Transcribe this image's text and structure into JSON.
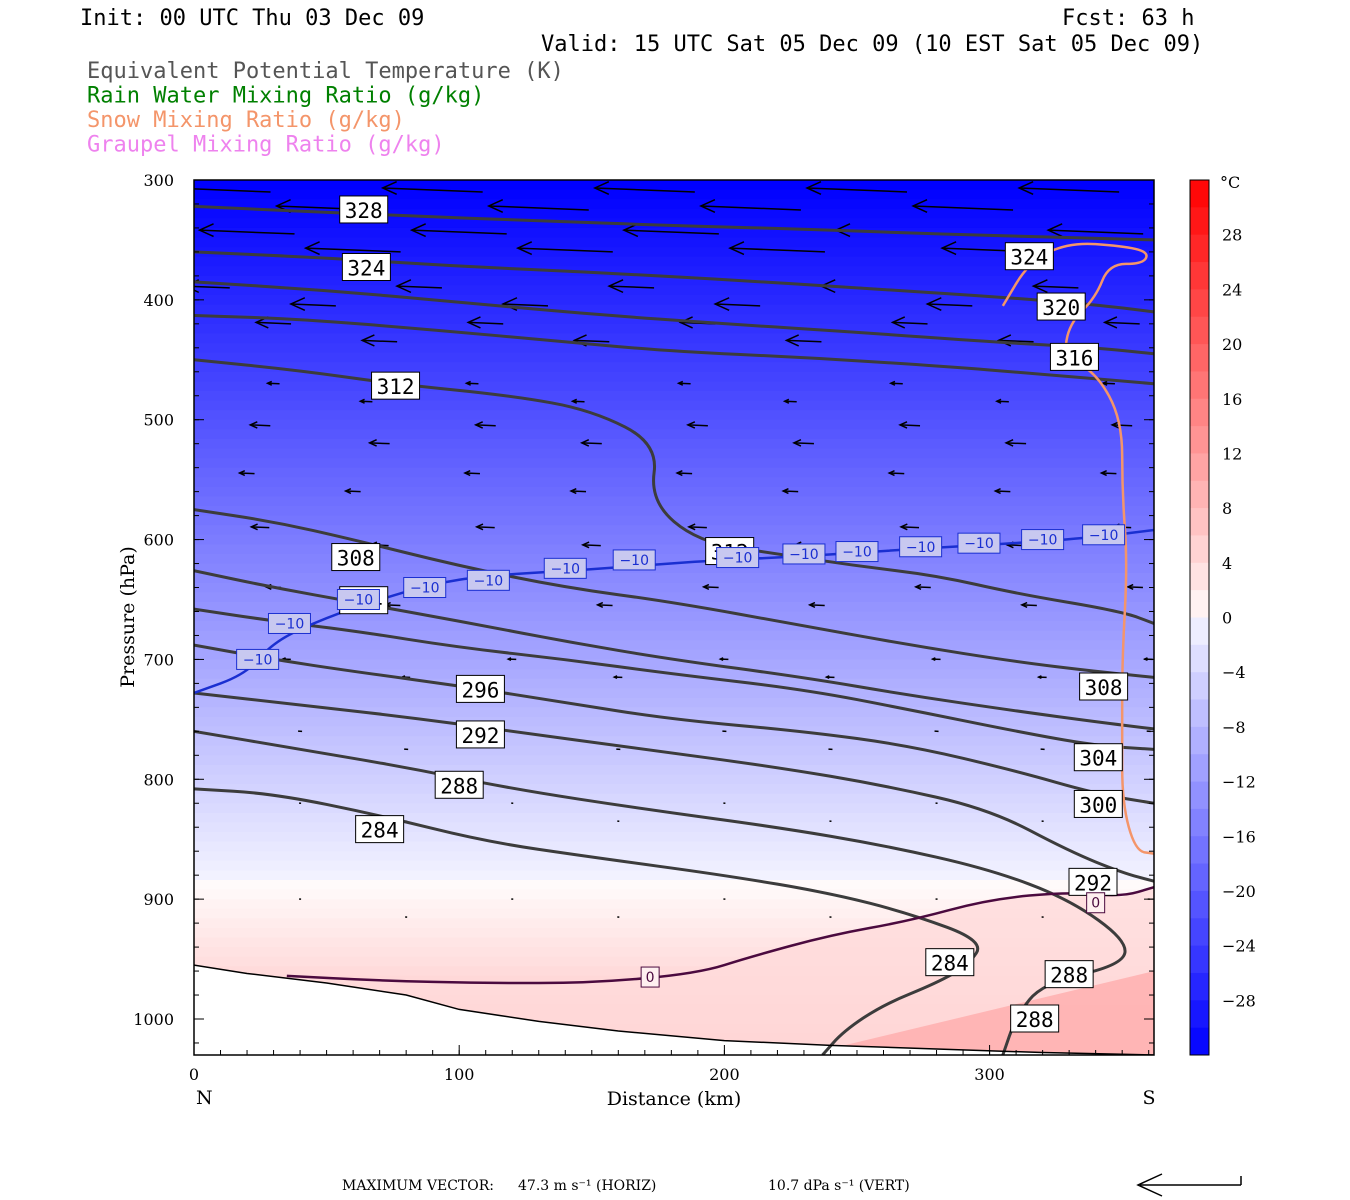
{
  "header": {
    "init": "Init: 00 UTC Thu 03 Dec 09",
    "fcst": "Fcst:   63 h",
    "valid": "Valid: 15 UTC Sat 05 Dec 09 (10 EST Sat 05 Dec 09)",
    "fields": [
      {
        "text": "Equivalent Potential Temperature (K)",
        "color": "#555555"
      },
      {
        "text": "Rain Water Mixing Ratio (g/kg)",
        "color": "#008000"
      },
      {
        "text": "Snow Mixing Ratio (g/kg)",
        "color": "#f4956a"
      },
      {
        "text": "Graupel Mixing Ratio (g/kg)",
        "color": "#ee82ee"
      }
    ]
  },
  "chart_data": {
    "type": "contour-cross-section",
    "xlabel": "Distance (km)",
    "ylabel": "Pressure (hPa)",
    "xlim": [
      0,
      362
    ],
    "ylim": [
      1030,
      300
    ],
    "x_ticks": [
      0,
      100,
      200,
      300
    ],
    "y_ticks": [
      300,
      400,
      500,
      600,
      700,
      800,
      900,
      1000
    ],
    "left_end_label": "N",
    "right_end_label": "S",
    "colorbar": {
      "unit": "°C",
      "levels": [
        32,
        30,
        28,
        26,
        24,
        22,
        20,
        18,
        16,
        14,
        12,
        10,
        8,
        6,
        4,
        2,
        0,
        -2,
        -4,
        -6,
        -8,
        -10,
        -12,
        -14,
        -16,
        -18,
        -20,
        -22,
        -24,
        -26,
        -28,
        -30,
        -32
      ],
      "tick_labels": [
        28,
        24,
        20,
        16,
        12,
        8,
        4,
        0,
        -4,
        -8,
        -12,
        -16,
        -20,
        -24,
        -28
      ]
    },
    "theta_e_contours": [
      {
        "value": 328,
        "points": [
          [
            0,
            322
          ],
          [
            40,
            326
          ],
          [
            80,
            330
          ],
          [
            130,
            334
          ],
          [
            180,
            338
          ],
          [
            230,
            341
          ],
          [
            280,
            345
          ],
          [
            330,
            348
          ],
          [
            362,
            350
          ]
        ],
        "labels": [
          [
            64,
            325
          ]
        ]
      },
      {
        "value": 324,
        "points": [
          [
            0,
            360
          ],
          [
            50,
            365
          ],
          [
            100,
            372
          ],
          [
            150,
            377
          ],
          [
            200,
            383
          ],
          [
            250,
            390
          ],
          [
            300,
            397
          ],
          [
            340,
            404
          ],
          [
            362,
            410
          ]
        ],
        "labels": [
          [
            65,
            373
          ],
          [
            315,
            364
          ]
        ]
      },
      {
        "value": 320,
        "points": [
          [
            0,
            385
          ],
          [
            50,
            392
          ],
          [
            100,
            402
          ],
          [
            150,
            412
          ],
          [
            200,
            420
          ],
          [
            250,
            427
          ],
          [
            300,
            435
          ],
          [
            340,
            440
          ],
          [
            362,
            445
          ]
        ],
        "labels": [
          [
            327,
            406
          ]
        ]
      },
      {
        "value": 316,
        "points": [
          [
            0,
            413
          ],
          [
            40,
            416
          ],
          [
            90,
            425
          ],
          [
            140,
            435
          ],
          [
            180,
            443
          ],
          [
            230,
            448
          ],
          [
            280,
            455
          ],
          [
            320,
            462
          ],
          [
            362,
            470
          ]
        ],
        "labels": [
          [
            332,
            448
          ]
        ]
      },
      {
        "value": 312,
        "points": [
          [
            0,
            450
          ],
          [
            40,
            459
          ],
          [
            75,
            470
          ],
          [
            120,
            480
          ],
          [
            150,
            492
          ],
          [
            175,
            520
          ],
          [
            172,
            568
          ],
          [
            190,
            602
          ],
          [
            220,
            612
          ],
          [
            250,
            622
          ],
          [
            280,
            630
          ],
          [
            310,
            645
          ],
          [
            350,
            660
          ],
          [
            362,
            670
          ]
        ],
        "labels": [
          [
            76,
            472
          ],
          [
            202,
            610
          ]
        ]
      },
      {
        "value": 308,
        "points": [
          [
            0,
            575
          ],
          [
            30,
            585
          ],
          [
            60,
            600
          ],
          [
            100,
            622
          ],
          [
            140,
            640
          ],
          [
            180,
            652
          ],
          [
            230,
            672
          ],
          [
            270,
            688
          ],
          [
            310,
            702
          ],
          [
            340,
            710
          ],
          [
            362,
            715
          ]
        ],
        "labels": [
          [
            61,
            615
          ],
          [
            343,
            723
          ]
        ]
      },
      {
        "value": 304,
        "points": [
          [
            0,
            626
          ],
          [
            30,
            640
          ],
          [
            60,
            652
          ],
          [
            100,
            668
          ],
          [
            140,
            685
          ],
          [
            180,
            700
          ],
          [
            230,
            715
          ],
          [
            270,
            730
          ],
          [
            310,
            743
          ],
          [
            340,
            752
          ],
          [
            362,
            758
          ]
        ],
        "labels": [
          [
            64,
            651
          ],
          [
            341,
            782
          ]
        ]
      },
      {
        "value": 300,
        "points": [
          [
            0,
            658
          ],
          [
            30,
            668
          ],
          [
            60,
            676
          ],
          [
            100,
            690
          ],
          [
            140,
            700
          ],
          [
            180,
            712
          ],
          [
            230,
            725
          ],
          [
            270,
            742
          ],
          [
            310,
            760
          ],
          [
            340,
            772
          ],
          [
            362,
            775
          ]
        ],
        "labels": [
          [
            341,
            821
          ]
        ]
      },
      {
        "value": 296,
        "points": [
          [
            0,
            688
          ],
          [
            30,
            700
          ],
          [
            60,
            710
          ],
          [
            100,
            722
          ],
          [
            140,
            736
          ],
          [
            180,
            750
          ],
          [
            230,
            760
          ],
          [
            270,
            772
          ],
          [
            310,
            793
          ],
          [
            340,
            812
          ],
          [
            362,
            820
          ]
        ],
        "labels": [
          [
            108,
            725
          ]
        ]
      },
      {
        "value": 292,
        "points": [
          [
            0,
            728
          ],
          [
            40,
            738
          ],
          [
            80,
            748
          ],
          [
            120,
            760
          ],
          [
            170,
            775
          ],
          [
            220,
            790
          ],
          [
            260,
            805
          ],
          [
            300,
            825
          ],
          [
            330,
            860
          ],
          [
            350,
            878
          ],
          [
            362,
            885
          ]
        ],
        "labels": [
          [
            108,
            763
          ],
          [
            339,
            886
          ]
        ]
      },
      {
        "value": 288,
        "points": [
          [
            0,
            760
          ],
          [
            40,
            775
          ],
          [
            80,
            790
          ],
          [
            120,
            808
          ],
          [
            170,
            825
          ],
          [
            220,
            840
          ],
          [
            260,
            855
          ],
          [
            300,
            875
          ],
          [
            330,
            900
          ],
          [
            352,
            935
          ],
          [
            350,
            955
          ],
          [
            320,
            970
          ],
          [
            310,
            998
          ],
          [
            305,
            1030
          ]
        ],
        "labels": [
          [
            100,
            805
          ],
          [
            330,
            963
          ],
          [
            317,
            1000
          ]
        ]
      },
      {
        "value": 284,
        "points": [
          [
            0,
            808
          ],
          [
            30,
            812
          ],
          [
            70,
            830
          ],
          [
            110,
            852
          ],
          [
            150,
            865
          ],
          [
            200,
            880
          ],
          [
            240,
            895
          ],
          [
            270,
            912
          ],
          [
            298,
            935
          ],
          [
            292,
            955
          ],
          [
            280,
            970
          ],
          [
            260,
            988
          ],
          [
            245,
            1010
          ],
          [
            237,
            1030
          ]
        ],
        "labels": [
          [
            70,
            842
          ],
          [
            285,
            953
          ]
        ]
      }
    ],
    "isotherms": [
      {
        "value": -10,
        "points": [
          [
            0,
            728
          ],
          [
            20,
            712
          ],
          [
            30,
            685
          ],
          [
            50,
            665
          ],
          [
            70,
            650
          ],
          [
            90,
            637
          ],
          [
            110,
            630
          ],
          [
            150,
            625
          ],
          [
            190,
            618
          ],
          [
            230,
            614
          ],
          [
            270,
            608
          ],
          [
            310,
            603
          ],
          [
            340,
            598
          ],
          [
            362,
            592
          ]
        ],
        "labels": [
          [
            24,
            700
          ],
          [
            36,
            670
          ],
          [
            62,
            650
          ],
          [
            87,
            640
          ],
          [
            111,
            634
          ],
          [
            140,
            624
          ],
          [
            166,
            617
          ],
          [
            205,
            615
          ],
          [
            230,
            612
          ],
          [
            250,
            610
          ],
          [
            274,
            606
          ],
          [
            296,
            603
          ],
          [
            320,
            600
          ],
          [
            343,
            596
          ]
        ]
      },
      {
        "value": 0,
        "points": [
          [
            35,
            964
          ],
          [
            70,
            968
          ],
          [
            110,
            970
          ],
          [
            150,
            970
          ],
          [
            190,
            962
          ],
          [
            210,
            948
          ],
          [
            240,
            930
          ],
          [
            270,
            918
          ],
          [
            300,
            900
          ],
          [
            330,
            894
          ],
          [
            350,
            898
          ],
          [
            362,
            890
          ]
        ],
        "labels": [
          [
            172,
            965
          ],
          [
            340,
            903
          ]
        ]
      }
    ],
    "snow_mixing_ratio_contour": {
      "points": [
        [
          305,
          405
        ],
        [
          315,
          368
        ],
        [
          330,
          352
        ],
        [
          350,
          355
        ],
        [
          360,
          360
        ],
        [
          358,
          370
        ],
        [
          345,
          370
        ],
        [
          340,
          398
        ],
        [
          330,
          420
        ],
        [
          328,
          448
        ],
        [
          340,
          460
        ],
        [
          350,
          500
        ],
        [
          350,
          560
        ],
        [
          352,
          620
        ],
        [
          350,
          700
        ],
        [
          350,
          760
        ],
        [
          350,
          820
        ],
        [
          355,
          860
        ],
        [
          362,
          862
        ]
      ]
    },
    "terrain_line": [
      [
        0,
        955
      ],
      [
        20,
        962
      ],
      [
        50,
        970
      ],
      [
        80,
        980
      ],
      [
        100,
        992
      ],
      [
        130,
        1002
      ],
      [
        160,
        1010
      ],
      [
        200,
        1018
      ],
      [
        240,
        1022
      ],
      [
        280,
        1025
      ],
      [
        320,
        1028
      ],
      [
        362,
        1030
      ]
    ],
    "wind_vectors_note": "arrows show along-section circulation; leftward-pointing in upper levels, weak below 800 hPa",
    "max_vector": {
      "label": "MAXIMUM VECTOR:",
      "horiz": "47.3 m s⁻¹ (HORIZ)",
      "vert": "10.7 dPa s⁻¹ (VERT)"
    }
  }
}
